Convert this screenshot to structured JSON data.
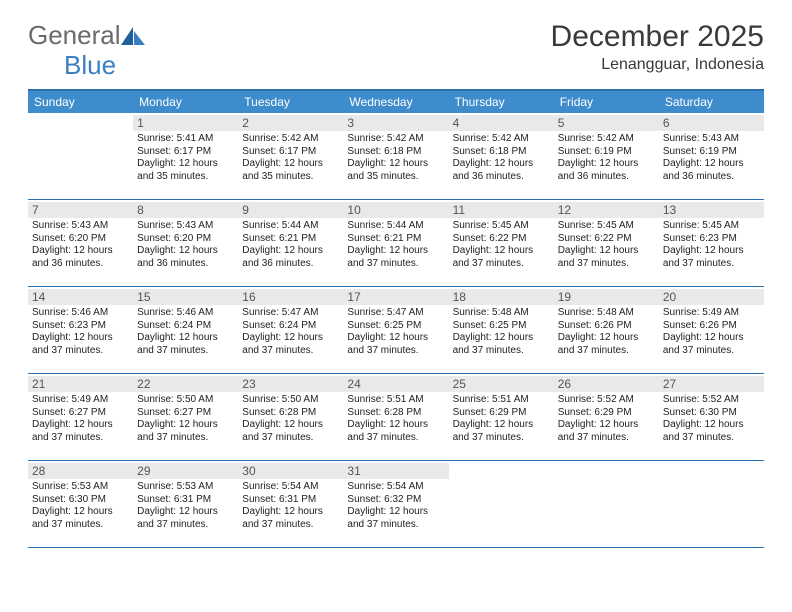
{
  "brand": {
    "part1": "General",
    "part2": "Blue"
  },
  "title": "December 2025",
  "location": "Lenangguar, Indonesia",
  "colors": {
    "header_bg": "#3e8ccc",
    "border": "#2a6fb0",
    "daynum_bg": "#e9e9e9",
    "logo_blue": "#3b7fbf"
  },
  "daysOfWeek": [
    "Sunday",
    "Monday",
    "Tuesday",
    "Wednesday",
    "Thursday",
    "Friday",
    "Saturday"
  ],
  "startOffset": 1,
  "days": [
    {
      "n": 1,
      "sunrise": "5:41 AM",
      "sunset": "6:17 PM",
      "daylight": "12 hours and 35 minutes."
    },
    {
      "n": 2,
      "sunrise": "5:42 AM",
      "sunset": "6:17 PM",
      "daylight": "12 hours and 35 minutes."
    },
    {
      "n": 3,
      "sunrise": "5:42 AM",
      "sunset": "6:18 PM",
      "daylight": "12 hours and 35 minutes."
    },
    {
      "n": 4,
      "sunrise": "5:42 AM",
      "sunset": "6:18 PM",
      "daylight": "12 hours and 36 minutes."
    },
    {
      "n": 5,
      "sunrise": "5:42 AM",
      "sunset": "6:19 PM",
      "daylight": "12 hours and 36 minutes."
    },
    {
      "n": 6,
      "sunrise": "5:43 AM",
      "sunset": "6:19 PM",
      "daylight": "12 hours and 36 minutes."
    },
    {
      "n": 7,
      "sunrise": "5:43 AM",
      "sunset": "6:20 PM",
      "daylight": "12 hours and 36 minutes."
    },
    {
      "n": 8,
      "sunrise": "5:43 AM",
      "sunset": "6:20 PM",
      "daylight": "12 hours and 36 minutes."
    },
    {
      "n": 9,
      "sunrise": "5:44 AM",
      "sunset": "6:21 PM",
      "daylight": "12 hours and 36 minutes."
    },
    {
      "n": 10,
      "sunrise": "5:44 AM",
      "sunset": "6:21 PM",
      "daylight": "12 hours and 37 minutes."
    },
    {
      "n": 11,
      "sunrise": "5:45 AM",
      "sunset": "6:22 PM",
      "daylight": "12 hours and 37 minutes."
    },
    {
      "n": 12,
      "sunrise": "5:45 AM",
      "sunset": "6:22 PM",
      "daylight": "12 hours and 37 minutes."
    },
    {
      "n": 13,
      "sunrise": "5:45 AM",
      "sunset": "6:23 PM",
      "daylight": "12 hours and 37 minutes."
    },
    {
      "n": 14,
      "sunrise": "5:46 AM",
      "sunset": "6:23 PM",
      "daylight": "12 hours and 37 minutes."
    },
    {
      "n": 15,
      "sunrise": "5:46 AM",
      "sunset": "6:24 PM",
      "daylight": "12 hours and 37 minutes."
    },
    {
      "n": 16,
      "sunrise": "5:47 AM",
      "sunset": "6:24 PM",
      "daylight": "12 hours and 37 minutes."
    },
    {
      "n": 17,
      "sunrise": "5:47 AM",
      "sunset": "6:25 PM",
      "daylight": "12 hours and 37 minutes."
    },
    {
      "n": 18,
      "sunrise": "5:48 AM",
      "sunset": "6:25 PM",
      "daylight": "12 hours and 37 minutes."
    },
    {
      "n": 19,
      "sunrise": "5:48 AM",
      "sunset": "6:26 PM",
      "daylight": "12 hours and 37 minutes."
    },
    {
      "n": 20,
      "sunrise": "5:49 AM",
      "sunset": "6:26 PM",
      "daylight": "12 hours and 37 minutes."
    },
    {
      "n": 21,
      "sunrise": "5:49 AM",
      "sunset": "6:27 PM",
      "daylight": "12 hours and 37 minutes."
    },
    {
      "n": 22,
      "sunrise": "5:50 AM",
      "sunset": "6:27 PM",
      "daylight": "12 hours and 37 minutes."
    },
    {
      "n": 23,
      "sunrise": "5:50 AM",
      "sunset": "6:28 PM",
      "daylight": "12 hours and 37 minutes."
    },
    {
      "n": 24,
      "sunrise": "5:51 AM",
      "sunset": "6:28 PM",
      "daylight": "12 hours and 37 minutes."
    },
    {
      "n": 25,
      "sunrise": "5:51 AM",
      "sunset": "6:29 PM",
      "daylight": "12 hours and 37 minutes."
    },
    {
      "n": 26,
      "sunrise": "5:52 AM",
      "sunset": "6:29 PM",
      "daylight": "12 hours and 37 minutes."
    },
    {
      "n": 27,
      "sunrise": "5:52 AM",
      "sunset": "6:30 PM",
      "daylight": "12 hours and 37 minutes."
    },
    {
      "n": 28,
      "sunrise": "5:53 AM",
      "sunset": "6:30 PM",
      "daylight": "12 hours and 37 minutes."
    },
    {
      "n": 29,
      "sunrise": "5:53 AM",
      "sunset": "6:31 PM",
      "daylight": "12 hours and 37 minutes."
    },
    {
      "n": 30,
      "sunrise": "5:54 AM",
      "sunset": "6:31 PM",
      "daylight": "12 hours and 37 minutes."
    },
    {
      "n": 31,
      "sunrise": "5:54 AM",
      "sunset": "6:32 PM",
      "daylight": "12 hours and 37 minutes."
    }
  ],
  "labels": {
    "sunrise": "Sunrise:",
    "sunset": "Sunset:",
    "daylight": "Daylight:"
  }
}
